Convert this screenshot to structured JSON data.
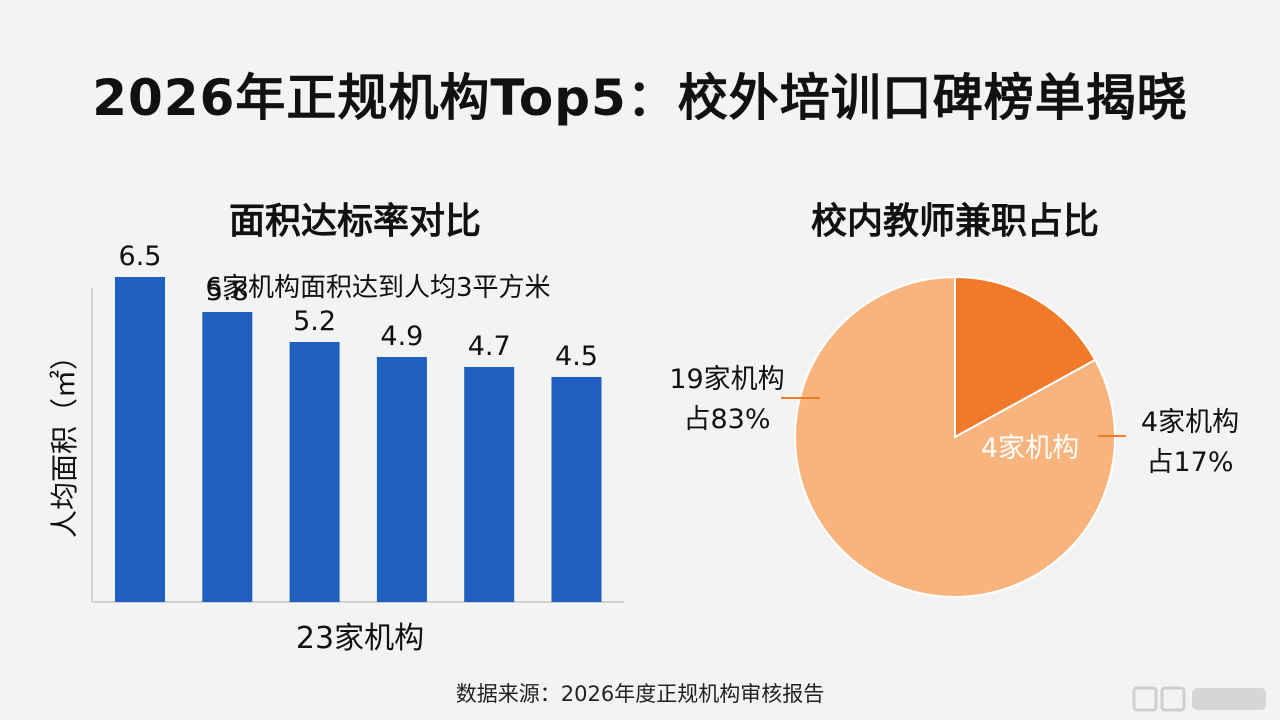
{
  "title": "2026年正规机构Top5：校外培训口碑榜单揭晓",
  "source": "数据来源：2026年度正规机构审核报告",
  "chart_data": [
    {
      "type": "bar",
      "title": "面积达标率对比",
      "annotation": "6家机构面积达到人均3平方米",
      "xlabel": "23家机构",
      "ylabel": "人均面积（㎡）",
      "values": [
        6.5,
        5.8,
        5.2,
        4.9,
        4.7,
        4.5
      ],
      "value_labels": [
        "6.5",
        "5.8",
        "5.2",
        "4.9",
        "4.7",
        "4.5"
      ],
      "ylim": [
        0,
        8
      ],
      "color": "#1f5fbf",
      "grid": false
    },
    {
      "type": "pie",
      "title": "校内教师兼职占比",
      "slices": [
        {
          "label_lines": [
            "4家机构",
            "占17%"
          ],
          "inner_label": "4家机构",
          "value": 17,
          "color": "#f07a2a"
        },
        {
          "label_lines": [
            "19家机构",
            "占83%"
          ],
          "value": 83,
          "color": "#f8b47c"
        }
      ]
    }
  ]
}
